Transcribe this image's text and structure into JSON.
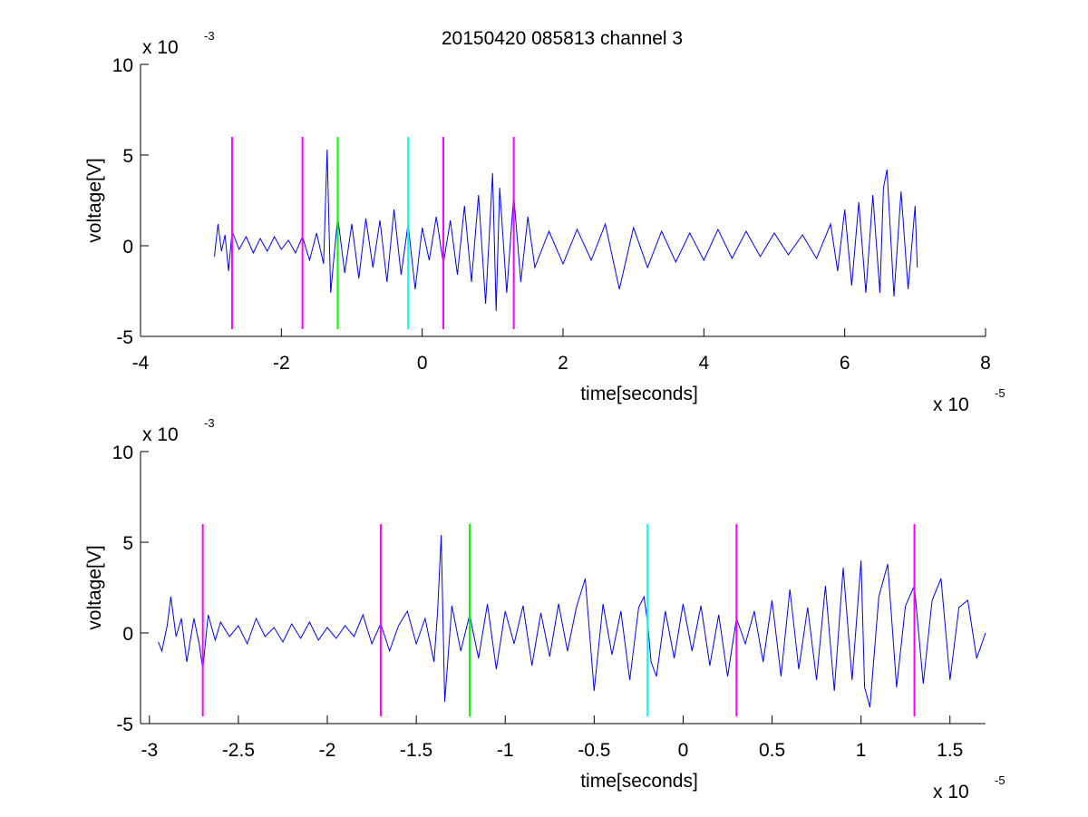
{
  "figure_title": "20150420 085813 channel 3",
  "chart_data": [
    {
      "type": "line",
      "title": "20150420 085813 channel 3",
      "xlabel": "time[seconds]",
      "ylabel": "voltage[V]",
      "x_exponent_label": "x 10",
      "x_exponent": "-5",
      "y_exponent_label": "x 10",
      "y_exponent": "-3",
      "xlim": [
        -4,
        8
      ],
      "ylim": [
        -5,
        10
      ],
      "xticks": [
        -4,
        -2,
        0,
        2,
        4,
        6,
        8
      ],
      "xtick_labels": [
        "-4",
        "-2",
        "0",
        "2",
        "4",
        "6",
        "8"
      ],
      "yticks": [
        -5,
        0,
        5,
        10
      ],
      "ytick_labels": [
        "-5",
        "0",
        "5",
        "10"
      ],
      "grid": false,
      "series": [
        {
          "color": "#0000ff",
          "x_range": [
            -2.95,
            7.03
          ],
          "points": [
            [
              -2.95,
              -0.6
            ],
            [
              -2.9,
              1.2
            ],
            [
              -2.85,
              -0.3
            ],
            [
              -2.8,
              0.6
            ],
            [
              -2.75,
              -1.4
            ],
            [
              -2.7,
              0.8
            ],
            [
              -2.6,
              -0.2
            ],
            [
              -2.5,
              0.5
            ],
            [
              -2.4,
              -0.4
            ],
            [
              -2.3,
              0.4
            ],
            [
              -2.2,
              -0.3
            ],
            [
              -2.1,
              0.5
            ],
            [
              -2.0,
              -0.2
            ],
            [
              -1.9,
              0.3
            ],
            [
              -1.8,
              -0.4
            ],
            [
              -1.7,
              0.5
            ],
            [
              -1.6,
              -0.8
            ],
            [
              -1.5,
              0.7
            ],
            [
              -1.4,
              -1.0
            ],
            [
              -1.35,
              5.3
            ],
            [
              -1.3,
              -2.6
            ],
            [
              -1.2,
              1.6
            ],
            [
              -1.1,
              -1.5
            ],
            [
              -1.0,
              1.2
            ],
            [
              -0.9,
              -1.8
            ],
            [
              -0.8,
              1.5
            ],
            [
              -0.7,
              -1.2
            ],
            [
              -0.6,
              1.4
            ],
            [
              -0.5,
              -2.0
            ],
            [
              -0.4,
              2.0
            ],
            [
              -0.3,
              -1.6
            ],
            [
              -0.2,
              1.2
            ],
            [
              -0.1,
              -2.4
            ],
            [
              0.0,
              1.0
            ],
            [
              0.1,
              -0.8
            ],
            [
              0.2,
              1.6
            ],
            [
              0.3,
              -1.0
            ],
            [
              0.4,
              1.4
            ],
            [
              0.5,
              -1.6
            ],
            [
              0.6,
              2.2
            ],
            [
              0.7,
              -2.0
            ],
            [
              0.8,
              2.8
            ],
            [
              0.9,
              -3.2
            ],
            [
              1.0,
              4.0
            ],
            [
              1.05,
              -3.6
            ],
            [
              1.1,
              3.2
            ],
            [
              1.2,
              -2.6
            ],
            [
              1.3,
              2.8
            ],
            [
              1.4,
              -2.0
            ],
            [
              1.5,
              1.6
            ],
            [
              1.6,
              -1.2
            ],
            [
              1.8,
              0.8
            ],
            [
              2.0,
              -1.0
            ],
            [
              2.2,
              0.9
            ],
            [
              2.4,
              -0.8
            ],
            [
              2.6,
              1.2
            ],
            [
              2.8,
              -2.4
            ],
            [
              3.0,
              1.0
            ],
            [
              3.2,
              -1.2
            ],
            [
              3.4,
              0.8
            ],
            [
              3.6,
              -0.9
            ],
            [
              3.8,
              0.7
            ],
            [
              4.0,
              -0.8
            ],
            [
              4.2,
              0.9
            ],
            [
              4.4,
              -0.7
            ],
            [
              4.6,
              0.8
            ],
            [
              4.8,
              -0.6
            ],
            [
              5.0,
              0.7
            ],
            [
              5.2,
              -0.5
            ],
            [
              5.4,
              0.6
            ],
            [
              5.6,
              -0.7
            ],
            [
              5.8,
              1.2
            ],
            [
              5.9,
              -1.4
            ],
            [
              6.0,
              2.0
            ],
            [
              6.1,
              -2.2
            ],
            [
              6.2,
              2.4
            ],
            [
              6.3,
              -2.6
            ],
            [
              6.4,
              2.8
            ],
            [
              6.5,
              -2.6
            ],
            [
              6.55,
              3.2
            ],
            [
              6.6,
              4.2
            ],
            [
              6.7,
              -2.8
            ],
            [
              6.8,
              3.0
            ],
            [
              6.9,
              -2.4
            ],
            [
              7.0,
              2.2
            ],
            [
              7.03,
              -1.2
            ]
          ]
        }
      ],
      "markers": [
        {
          "x": -2.7,
          "color": "#ff00ff"
        },
        {
          "x": -1.7,
          "color": "#ff00ff"
        },
        {
          "x": -1.2,
          "color": "#00ff00"
        },
        {
          "x": -0.2,
          "color": "#00ffff"
        },
        {
          "x": 0.3,
          "color": "#ff00ff"
        },
        {
          "x": 1.3,
          "color": "#ff00ff"
        }
      ],
      "marker_y_range": [
        -4.6,
        6.0
      ]
    },
    {
      "type": "line",
      "title": "",
      "xlabel": "time[seconds]",
      "ylabel": "voltage[V]",
      "x_exponent_label": "x 10",
      "x_exponent": "-5",
      "y_exponent_label": "x 10",
      "y_exponent": "-3",
      "xlim": [
        -3.05,
        1.7
      ],
      "ylim": [
        -5,
        10
      ],
      "xticks": [
        -3,
        -2.5,
        -2,
        -1.5,
        -1,
        -0.5,
        0,
        0.5,
        1,
        1.5
      ],
      "xtick_labels": [
        "-3",
        "-2.5",
        "-2",
        "-1.5",
        "-1",
        "-0.5",
        "0",
        "0.5",
        "1",
        "1.5"
      ],
      "yticks": [
        -5,
        0,
        5,
        10
      ],
      "ytick_labels": [
        "-5",
        "0",
        "5",
        "10"
      ],
      "grid": false,
      "series": [
        {
          "color": "#0000ff",
          "x_range": [
            -2.95,
            1.7
          ],
          "points": [
            [
              -2.95,
              -0.5
            ],
            [
              -2.93,
              -1.0
            ],
            [
              -2.9,
              0.4
            ],
            [
              -2.88,
              2.0
            ],
            [
              -2.85,
              -0.2
            ],
            [
              -2.82,
              0.8
            ],
            [
              -2.79,
              -1.6
            ],
            [
              -2.75,
              0.8
            ],
            [
              -2.72,
              -0.6
            ],
            [
              -2.7,
              -2.0
            ],
            [
              -2.67,
              1.0
            ],
            [
              -2.63,
              -0.4
            ],
            [
              -2.6,
              0.6
            ],
            [
              -2.55,
              -0.2
            ],
            [
              -2.5,
              0.4
            ],
            [
              -2.45,
              -0.6
            ],
            [
              -2.4,
              0.8
            ],
            [
              -2.35,
              -0.2
            ],
            [
              -2.3,
              0.3
            ],
            [
              -2.25,
              -0.5
            ],
            [
              -2.2,
              0.5
            ],
            [
              -2.15,
              -0.3
            ],
            [
              -2.1,
              0.6
            ],
            [
              -2.05,
              -0.4
            ],
            [
              -2.0,
              0.3
            ],
            [
              -1.95,
              -0.3
            ],
            [
              -1.9,
              0.4
            ],
            [
              -1.85,
              -0.2
            ],
            [
              -1.8,
              1.0
            ],
            [
              -1.75,
              -0.6
            ],
            [
              -1.7,
              0.5
            ],
            [
              -1.65,
              -1.0
            ],
            [
              -1.6,
              0.4
            ],
            [
              -1.55,
              1.2
            ],
            [
              -1.5,
              -0.6
            ],
            [
              -1.45,
              0.8
            ],
            [
              -1.4,
              -1.6
            ],
            [
              -1.38,
              1.2
            ],
            [
              -1.36,
              5.4
            ],
            [
              -1.34,
              -3.8
            ],
            [
              -1.3,
              1.5
            ],
            [
              -1.25,
              -1.0
            ],
            [
              -1.2,
              1.0
            ],
            [
              -1.15,
              -1.4
            ],
            [
              -1.1,
              1.6
            ],
            [
              -1.05,
              -2.0
            ],
            [
              -1.0,
              1.2
            ],
            [
              -0.95,
              -0.6
            ],
            [
              -0.9,
              1.5
            ],
            [
              -0.85,
              -1.8
            ],
            [
              -0.8,
              1.1
            ],
            [
              -0.75,
              -1.3
            ],
            [
              -0.7,
              1.6
            ],
            [
              -0.65,
              -1.0
            ],
            [
              -0.6,
              1.4
            ],
            [
              -0.55,
              3.0
            ],
            [
              -0.5,
              -3.2
            ],
            [
              -0.45,
              1.6
            ],
            [
              -0.4,
              -1.2
            ],
            [
              -0.35,
              1.2
            ],
            [
              -0.3,
              -2.6
            ],
            [
              -0.25,
              1.4
            ],
            [
              -0.22,
              2.0
            ],
            [
              -0.2,
              0.6
            ],
            [
              -0.18,
              -1.6
            ],
            [
              -0.15,
              -2.4
            ],
            [
              -0.1,
              1.2
            ],
            [
              -0.05,
              -1.4
            ],
            [
              0.0,
              1.6
            ],
            [
              0.05,
              -1.0
            ],
            [
              0.1,
              1.5
            ],
            [
              0.15,
              -1.8
            ],
            [
              0.2,
              1.0
            ],
            [
              0.25,
              -2.4
            ],
            [
              0.3,
              0.8
            ],
            [
              0.35,
              -0.6
            ],
            [
              0.4,
              1.2
            ],
            [
              0.45,
              -1.6
            ],
            [
              0.5,
              1.8
            ],
            [
              0.55,
              -2.4
            ],
            [
              0.6,
              2.4
            ],
            [
              0.65,
              -2.0
            ],
            [
              0.7,
              1.4
            ],
            [
              0.75,
              -2.6
            ],
            [
              0.8,
              2.6
            ],
            [
              0.85,
              -3.2
            ],
            [
              0.9,
              3.6
            ],
            [
              0.95,
              -2.6
            ],
            [
              1.0,
              4.0
            ],
            [
              1.02,
              -3.0
            ],
            [
              1.05,
              -4.1
            ],
            [
              1.1,
              2.0
            ],
            [
              1.15,
              3.8
            ],
            [
              1.2,
              -3.0
            ],
            [
              1.25,
              1.5
            ],
            [
              1.3,
              2.6
            ],
            [
              1.35,
              -2.8
            ],
            [
              1.4,
              1.8
            ],
            [
              1.45,
              3.0
            ],
            [
              1.5,
              -2.6
            ],
            [
              1.55,
              1.4
            ],
            [
              1.6,
              1.8
            ],
            [
              1.65,
              -1.4
            ],
            [
              1.7,
              0.0
            ]
          ]
        }
      ],
      "markers": [
        {
          "x": -2.7,
          "color": "#ff00ff"
        },
        {
          "x": -1.7,
          "color": "#ff00ff"
        },
        {
          "x": -1.2,
          "color": "#00ff00"
        },
        {
          "x": -0.2,
          "color": "#00ffff"
        },
        {
          "x": 0.3,
          "color": "#ff00ff"
        },
        {
          "x": 1.3,
          "color": "#ff00ff"
        }
      ],
      "marker_y_range": [
        -4.6,
        6.0
      ]
    }
  ]
}
